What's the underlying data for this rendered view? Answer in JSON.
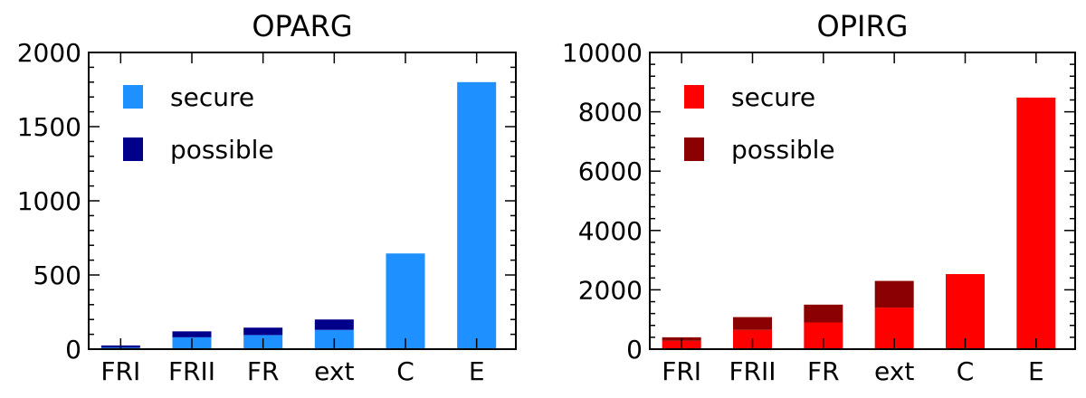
{
  "chart_data": [
    {
      "type": "bar",
      "stacked": true,
      "title": "OPARG",
      "categories": [
        "FRI",
        "FRII",
        "FR",
        "ext",
        "C",
        "E"
      ],
      "ylim": [
        0,
        2000
      ],
      "yticks": [
        0,
        500,
        1000,
        1500,
        2000
      ],
      "series": [
        {
          "name": "secure",
          "color": "#1e90ff",
          "values": [
            10,
            80,
            95,
            130,
            645,
            1800
          ]
        },
        {
          "name": "possible",
          "color": "#00008b",
          "values": [
            15,
            40,
            50,
            70,
            0,
            0
          ]
        }
      ],
      "legend_position": "top-left",
      "grid": false
    },
    {
      "type": "bar",
      "stacked": true,
      "title": "OPIRG",
      "categories": [
        "FRI",
        "FRII",
        "FR",
        "ext",
        "C",
        "E"
      ],
      "ylim": [
        0,
        10000
      ],
      "yticks": [
        0,
        2000,
        4000,
        6000,
        8000,
        10000
      ],
      "series": [
        {
          "name": "secure",
          "color": "#ff0000",
          "values": [
            280,
            650,
            900,
            1400,
            2530,
            8480
          ]
        },
        {
          "name": "possible",
          "color": "#8b0000",
          "values": [
            120,
            430,
            600,
            900,
            0,
            0
          ]
        }
      ],
      "legend_position": "top-left",
      "grid": false
    }
  ]
}
